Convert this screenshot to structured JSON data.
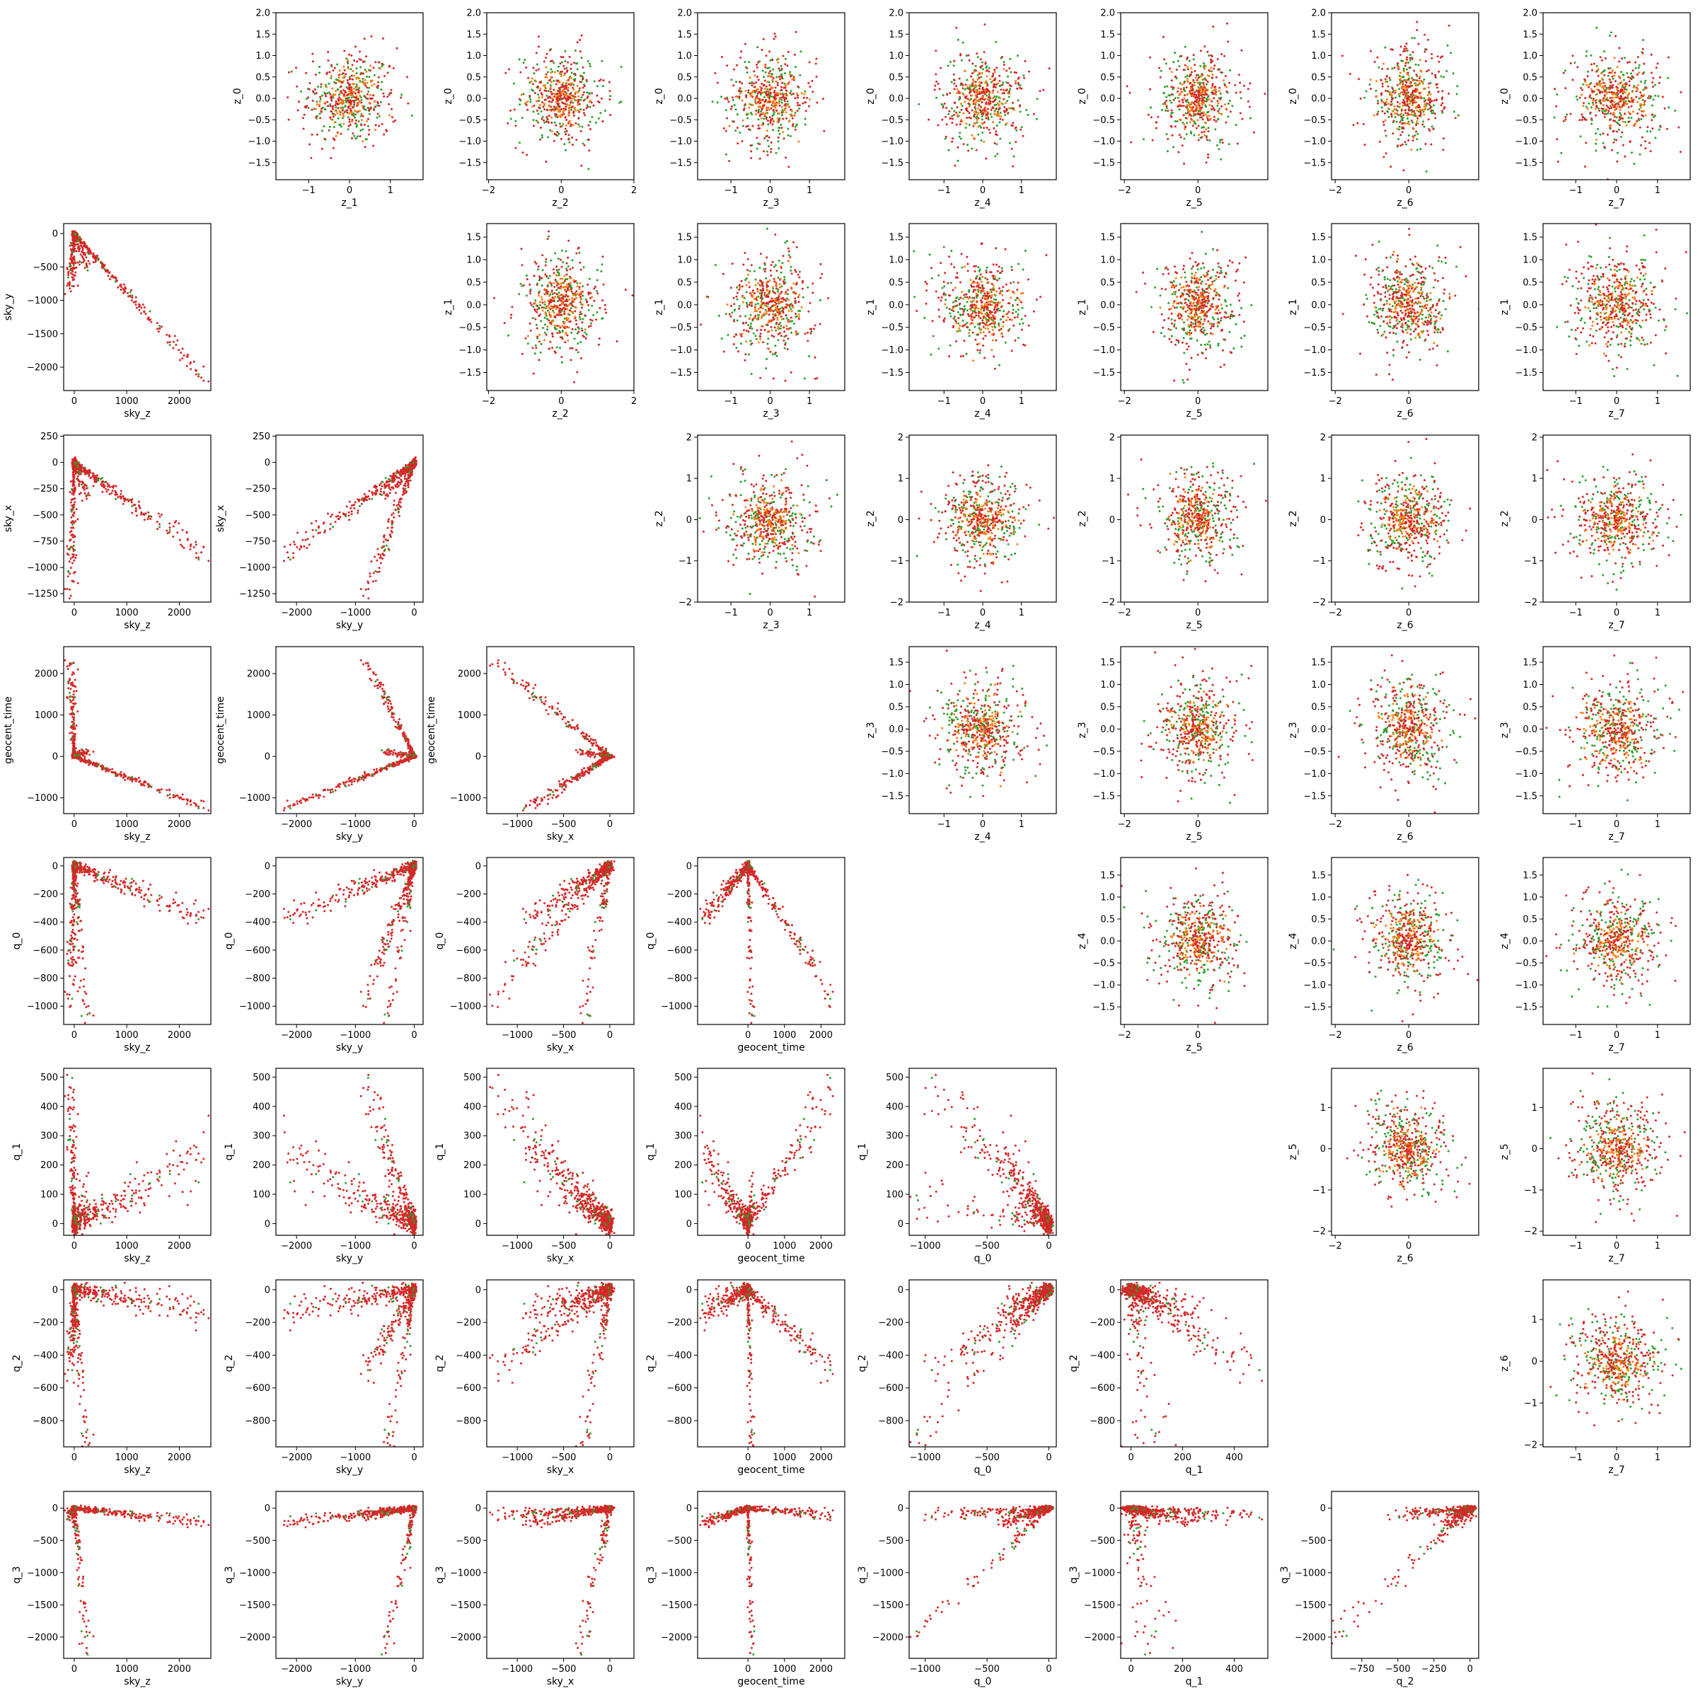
{
  "figure": {
    "type": "scatter-matrix",
    "description_of_colors": "three overlaid point sets",
    "colors": [
      "#2ca02c",
      "#ff7f0e",
      "#d62728"
    ]
  },
  "chart_data": {
    "type": "scatter",
    "lower_variables": [
      "sky_z",
      "sky_y",
      "sky_x",
      "geocent_time",
      "q_0",
      "q_1",
      "q_2",
      "q_3"
    ],
    "upper_variables": [
      "z_0",
      "z_1",
      "z_2",
      "z_3",
      "z_4",
      "z_5",
      "z_6",
      "z_7"
    ],
    "lower_ranges": {
      "sky_z": [
        -200,
        2600
      ],
      "sky_y": [
        -2350,
        150
      ],
      "sky_x": [
        -1330,
        260
      ],
      "geocent_time": [
        -1380,
        2650
      ],
      "q_0": [
        -1130,
        60
      ],
      "q_1": [
        -40,
        530
      ],
      "q_2": [
        -960,
        60
      ],
      "q_3": [
        -2330,
        260
      ]
    },
    "lower_y_ticks": {
      "sky_y": [
        0,
        -500,
        -1000,
        -1500,
        -2000
      ],
      "sky_x": [
        250,
        0,
        -250,
        -500,
        -750,
        -1000,
        -1250
      ],
      "geocent_time": [
        2000,
        1000,
        0,
        -1000
      ],
      "q_0": [
        0,
        -200,
        -400,
        -600,
        -800,
        -1000
      ],
      "q_1": [
        500,
        400,
        300,
        200,
        100,
        0
      ],
      "q_2": [
        0,
        -200,
        -400,
        -600,
        -800
      ],
      "q_3": [
        0,
        -500,
        -1000,
        -1500,
        -2000
      ]
    },
    "lower_x_ticks": {
      "sky_z": [
        0,
        1000,
        2000
      ],
      "sky_y": [
        -2000,
        -1000,
        0
      ],
      "sky_x": [
        -1000,
        -500,
        0
      ],
      "geocent_time": [
        0,
        1000,
        2000
      ],
      "q_0": [
        -1000,
        -500,
        0
      ],
      "q_1": [
        0,
        200,
        400
      ],
      "q_2": [
        -750,
        -500,
        -250,
        0
      ]
    },
    "lower_x_tick_labels": {
      "sky_z": [
        "0",
        "1000",
        "2000"
      ],
      "sky_y": [
        "−2000",
        "−1000",
        "0"
      ],
      "sky_x": [
        "−1000",
        "−500",
        "0"
      ],
      "geocent_time": [
        "0",
        "1000",
        "2000"
      ],
      "q_0": [
        "−1000",
        "−500",
        "0"
      ],
      "q_1": [
        "0",
        "200",
        "400"
      ],
      "q_2": [
        "−750",
        "−500",
        "−250",
        "0"
      ]
    },
    "lower_y_tick_labels": {
      "sky_y": [
        "0",
        "−500",
        "−1000",
        "−1500",
        "−2000"
      ],
      "sky_x": [
        "250",
        "0",
        "−250",
        "−500",
        "−750",
        "−1000",
        "−1250"
      ],
      "geocent_time": [
        "2000",
        "1000",
        "0",
        "−1000"
      ],
      "q_0": [
        "0",
        "−200",
        "−400",
        "−600",
        "−800",
        "−1000"
      ],
      "q_1": [
        "500",
        "400",
        "300",
        "200",
        "100",
        "0"
      ],
      "q_2": [
        "0",
        "−200",
        "−400",
        "−600",
        "−800"
      ],
      "q_3": [
        "0",
        "−500",
        "−1000",
        "−1500",
        "−2000"
      ]
    },
    "upper_rows": [
      {
        "y": "z_0",
        "ylim": [
          -1.9,
          2.0
        ],
        "yticks": [
          2.0,
          1.5,
          1.0,
          0.5,
          0.0,
          -0.5,
          -1.0,
          -1.5
        ],
        "ytick_labels": [
          "2.0",
          "1.5",
          "1.0",
          "0.5",
          "0.0",
          "−0.5",
          "−1.0",
          "−1.5"
        ]
      },
      {
        "y": "z_1",
        "ylim": [
          -1.9,
          1.8
        ],
        "yticks": [
          1.5,
          1.0,
          0.5,
          0.0,
          -0.5,
          -1.0,
          -1.5
        ],
        "ytick_labels": [
          "1.5",
          "1.0",
          "0.5",
          "0.0",
          "−0.5",
          "−1.0",
          "−1.5"
        ]
      },
      {
        "y": "z_2",
        "ylim": [
          -2.0,
          2.05
        ],
        "yticks": [
          2,
          1,
          0,
          -1,
          -2
        ],
        "ytick_labels": [
          "2",
          "1",
          "0",
          "−1",
          "−2"
        ]
      },
      {
        "y": "z_3",
        "ylim": [
          -1.9,
          1.85
        ],
        "yticks": [
          1.5,
          1.0,
          0.5,
          0.0,
          -0.5,
          -1.0,
          -1.5
        ],
        "ytick_labels": [
          "1.5",
          "1.0",
          "0.5",
          "0.0",
          "−0.5",
          "−1.0",
          "−1.5"
        ]
      },
      {
        "y": "z_4",
        "ylim": [
          -1.9,
          1.9
        ],
        "yticks": [
          1.5,
          1.0,
          0.5,
          0.0,
          -0.5,
          -1.0,
          -1.5
        ],
        "ytick_labels": [
          "1.5",
          "1.0",
          "0.5",
          "0.0",
          "−0.5",
          "−1.0",
          "−1.5"
        ]
      },
      {
        "y": "z_5",
        "ylim": [
          -2.1,
          1.95
        ],
        "yticks": [
          1,
          0,
          -1,
          -2
        ],
        "ytick_labels": [
          "1",
          "0",
          "−1",
          "−2"
        ]
      },
      {
        "y": "z_6",
        "ylim": [
          -2.05,
          1.95
        ],
        "yticks": [
          1,
          0,
          -1,
          -2
        ],
        "ytick_labels": [
          "1",
          "0",
          "−1",
          "−2"
        ]
      }
    ],
    "upper_cols": [
      {
        "x": "z_1",
        "xlim": [
          -1.8,
          1.8
        ],
        "xticks": [
          -1,
          0,
          1
        ],
        "xtick_labels": [
          "−1",
          "0",
          "1"
        ]
      },
      {
        "x": "z_2",
        "xlim": [
          -2.05,
          2.0
        ],
        "xticks": [
          -2,
          0,
          2
        ],
        "xtick_labels": [
          "−2",
          "0",
          "2"
        ]
      },
      {
        "x": "z_3",
        "xlim": [
          -1.85,
          1.9
        ],
        "xticks": [
          -1,
          0,
          1
        ],
        "xtick_labels": [
          "−1",
          "0",
          "1"
        ]
      },
      {
        "x": "z_4",
        "xlim": [
          -1.9,
          1.9
        ],
        "xticks": [
          -1,
          0,
          1
        ],
        "xtick_labels": [
          "−1",
          "0",
          "1"
        ]
      },
      {
        "x": "z_5",
        "xlim": [
          -2.1,
          1.9
        ],
        "xticks": [
          -2,
          0
        ],
        "xtick_labels": [
          "−2",
          "0"
        ]
      },
      {
        "x": "z_6",
        "xlim": [
          -2.1,
          1.9
        ],
        "xticks": [
          -2,
          0
        ],
        "xtick_labels": [
          "−2",
          "0"
        ]
      },
      {
        "x": "z_7",
        "xlim": [
          -1.8,
          1.8
        ],
        "xticks": [
          -1,
          0,
          1
        ],
        "xtick_labels": [
          "−1",
          "0",
          "1"
        ]
      }
    ]
  }
}
